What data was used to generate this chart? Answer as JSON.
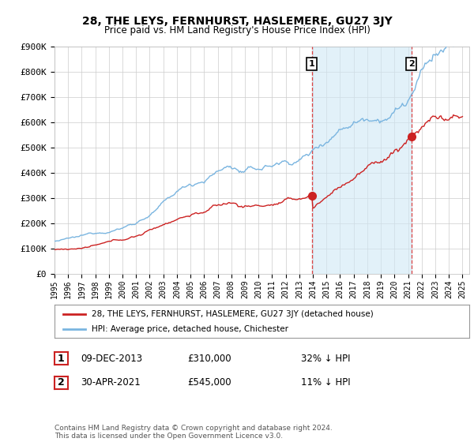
{
  "title": "28, THE LEYS, FERNHURST, HASLEMERE, GU27 3JY",
  "subtitle": "Price paid vs. HM Land Registry's House Price Index (HPI)",
  "ylim": [
    0,
    900000
  ],
  "yticks": [
    0,
    100000,
    200000,
    300000,
    400000,
    500000,
    600000,
    700000,
    800000,
    900000
  ],
  "ytick_labels": [
    "£0",
    "£100K",
    "£200K",
    "£300K",
    "£400K",
    "£500K",
    "£600K",
    "£700K",
    "£800K",
    "£900K"
  ],
  "hpi_color": "#7ab5e0",
  "price_color": "#cc2222",
  "legend_line1": "28, THE LEYS, FERNHURST, HASLEMERE, GU27 3JY (detached house)",
  "legend_line2": "HPI: Average price, detached house, Chichester",
  "marker1_price": 310000,
  "marker2_price": 545000,
  "marker1_year": 2013.92,
  "marker2_year": 2021.33,
  "background_color": "#ffffff",
  "grid_color": "#cccccc",
  "vline_color": "#dd4444",
  "span_color": "#d0e8f5",
  "footnote": "Contains HM Land Registry data © Crown copyright and database right 2024.\nThis data is licensed under the Open Government Licence v3.0."
}
